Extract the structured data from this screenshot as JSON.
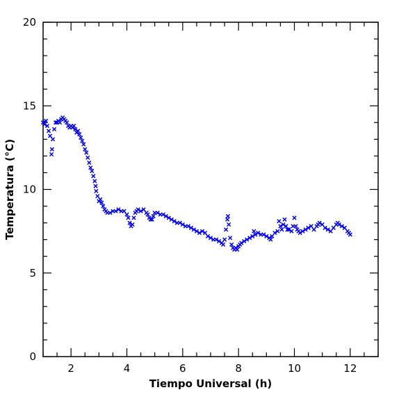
{
  "chart_data": {
    "type": "scatter",
    "title": "",
    "xlabel": "Tiempo Universal (h)",
    "ylabel": "Temperatura (°C)",
    "xlim": [
      1,
      13
    ],
    "ylim": [
      0,
      20
    ],
    "x_ticks": [
      2,
      4,
      6,
      8,
      10,
      12
    ],
    "y_ticks": [
      0,
      5,
      10,
      15,
      20
    ],
    "x_tick_labels": [
      "2",
      "4",
      "6",
      "8",
      "10",
      "12"
    ],
    "y_tick_labels": [
      "0",
      "5",
      "10",
      "15",
      "20"
    ],
    "grid": false,
    "marker": "x",
    "color": "#0000ff",
    "series": [
      {
        "points": [
          [
            1.0,
            14.0
          ],
          [
            1.05,
            13.9
          ],
          [
            1.1,
            14.1
          ],
          [
            1.15,
            13.8
          ],
          [
            1.2,
            13.5
          ],
          [
            1.25,
            13.2
          ],
          [
            1.3,
            12.1
          ],
          [
            1.32,
            12.4
          ],
          [
            1.35,
            13.0
          ],
          [
            1.4,
            13.6
          ],
          [
            1.45,
            14.0
          ],
          [
            1.5,
            14.0
          ],
          [
            1.55,
            14.1
          ],
          [
            1.6,
            14.0
          ],
          [
            1.65,
            14.2
          ],
          [
            1.7,
            14.3
          ],
          [
            1.75,
            14.2
          ],
          [
            1.8,
            14.1
          ],
          [
            1.85,
            14.0
          ],
          [
            1.9,
            13.8
          ],
          [
            1.95,
            13.7
          ],
          [
            2.0,
            13.8
          ],
          [
            2.05,
            13.7
          ],
          [
            2.1,
            13.8
          ],
          [
            2.15,
            13.6
          ],
          [
            2.2,
            13.4
          ],
          [
            2.25,
            13.5
          ],
          [
            2.3,
            13.3
          ],
          [
            2.35,
            13.1
          ],
          [
            2.4,
            12.9
          ],
          [
            2.45,
            12.7
          ],
          [
            2.5,
            12.4
          ],
          [
            2.55,
            12.2
          ],
          [
            2.6,
            11.9
          ],
          [
            2.65,
            11.6
          ],
          [
            2.7,
            11.3
          ],
          [
            2.75,
            11.1
          ],
          [
            2.8,
            10.8
          ],
          [
            2.85,
            10.5
          ],
          [
            2.88,
            10.2
          ],
          [
            2.9,
            9.9
          ],
          [
            2.95,
            9.6
          ],
          [
            3.0,
            9.3
          ],
          [
            3.05,
            9.4
          ],
          [
            3.1,
            9.2
          ],
          [
            3.15,
            9.0
          ],
          [
            3.2,
            8.8
          ],
          [
            3.25,
            8.7
          ],
          [
            3.3,
            8.6
          ],
          [
            3.4,
            8.6
          ],
          [
            3.5,
            8.7
          ],
          [
            3.6,
            8.7
          ],
          [
            3.7,
            8.8
          ],
          [
            3.8,
            8.7
          ],
          [
            3.9,
            8.7
          ],
          [
            4.0,
            8.5
          ],
          [
            4.05,
            8.3
          ],
          [
            4.1,
            8.0
          ],
          [
            4.15,
            7.8
          ],
          [
            4.2,
            7.9
          ],
          [
            4.25,
            8.3
          ],
          [
            4.3,
            8.6
          ],
          [
            4.35,
            8.7
          ],
          [
            4.4,
            8.8
          ],
          [
            4.5,
            8.7
          ],
          [
            4.6,
            8.8
          ],
          [
            4.7,
            8.6
          ],
          [
            4.75,
            8.5
          ],
          [
            4.8,
            8.3
          ],
          [
            4.85,
            8.2
          ],
          [
            4.9,
            8.2
          ],
          [
            4.95,
            8.4
          ],
          [
            5.0,
            8.6
          ],
          [
            5.1,
            8.6
          ],
          [
            5.2,
            8.5
          ],
          [
            5.3,
            8.5
          ],
          [
            5.4,
            8.4
          ],
          [
            5.5,
            8.3
          ],
          [
            5.6,
            8.2
          ],
          [
            5.7,
            8.1
          ],
          [
            5.8,
            8.0
          ],
          [
            5.9,
            8.0
          ],
          [
            6.0,
            7.9
          ],
          [
            6.1,
            7.8
          ],
          [
            6.2,
            7.8
          ],
          [
            6.3,
            7.7
          ],
          [
            6.4,
            7.6
          ],
          [
            6.5,
            7.5
          ],
          [
            6.6,
            7.4
          ],
          [
            6.7,
            7.5
          ],
          [
            6.8,
            7.4
          ],
          [
            6.9,
            7.2
          ],
          [
            7.0,
            7.1
          ],
          [
            7.1,
            7.0
          ],
          [
            7.2,
            7.0
          ],
          [
            7.3,
            6.9
          ],
          [
            7.4,
            6.8
          ],
          [
            7.45,
            6.7
          ],
          [
            7.5,
            7.0
          ],
          [
            7.55,
            7.6
          ],
          [
            7.6,
            8.2
          ],
          [
            7.62,
            8.4
          ],
          [
            7.65,
            7.9
          ],
          [
            7.7,
            7.1
          ],
          [
            7.75,
            6.7
          ],
          [
            7.8,
            6.5
          ],
          [
            7.85,
            6.4
          ],
          [
            7.9,
            6.5
          ],
          [
            7.95,
            6.4
          ],
          [
            8.0,
            6.6
          ],
          [
            8.05,
            6.7
          ],
          [
            8.1,
            6.8
          ],
          [
            8.2,
            6.9
          ],
          [
            8.3,
            7.0
          ],
          [
            8.4,
            7.1
          ],
          [
            8.5,
            7.2
          ],
          [
            8.55,
            7.5
          ],
          [
            8.6,
            7.3
          ],
          [
            8.7,
            7.4
          ],
          [
            8.8,
            7.3
          ],
          [
            8.9,
            7.3
          ],
          [
            9.0,
            7.2
          ],
          [
            9.1,
            7.1
          ],
          [
            9.15,
            7.0
          ],
          [
            9.2,
            7.2
          ],
          [
            9.3,
            7.4
          ],
          [
            9.4,
            7.5
          ],
          [
            9.45,
            8.1
          ],
          [
            9.5,
            7.8
          ],
          [
            9.55,
            7.6
          ],
          [
            9.6,
            7.9
          ],
          [
            9.65,
            8.2
          ],
          [
            9.7,
            7.8
          ],
          [
            9.75,
            7.6
          ],
          [
            9.8,
            7.6
          ],
          [
            9.9,
            7.5
          ],
          [
            9.95,
            7.8
          ],
          [
            10.0,
            8.3
          ],
          [
            10.05,
            7.8
          ],
          [
            10.1,
            7.6
          ],
          [
            10.15,
            7.5
          ],
          [
            10.2,
            7.4
          ],
          [
            10.3,
            7.5
          ],
          [
            10.4,
            7.6
          ],
          [
            10.5,
            7.7
          ],
          [
            10.6,
            7.8
          ],
          [
            10.7,
            7.6
          ],
          [
            10.8,
            7.8
          ],
          [
            10.85,
            7.9
          ],
          [
            10.9,
            8.0
          ],
          [
            11.0,
            7.9
          ],
          [
            11.1,
            7.7
          ],
          [
            11.2,
            7.6
          ],
          [
            11.3,
            7.5
          ],
          [
            11.4,
            7.7
          ],
          [
            11.5,
            7.9
          ],
          [
            11.55,
            8.0
          ],
          [
            11.6,
            7.9
          ],
          [
            11.7,
            7.8
          ],
          [
            11.8,
            7.7
          ],
          [
            11.9,
            7.5
          ],
          [
            11.95,
            7.4
          ],
          [
            12.0,
            7.3
          ]
        ]
      }
    ]
  }
}
